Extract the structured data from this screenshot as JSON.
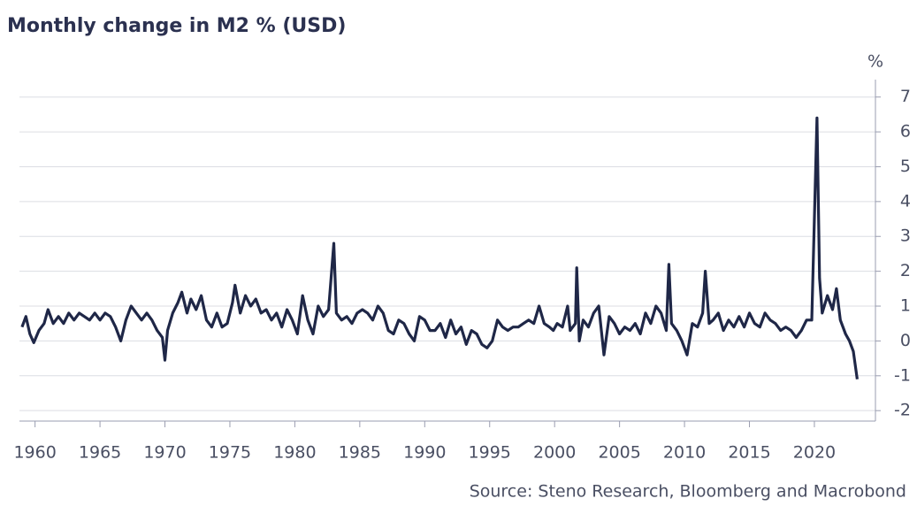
{
  "chart_data": {
    "type": "line",
    "title": "Monthly change in M2 % (USD)",
    "y_label": "%",
    "source": "Source: Steno Research, Bloomberg and Macrobond",
    "xlim": [
      1958.8,
      2024.7
    ],
    "xticks": [
      1960,
      1965,
      1970,
      1975,
      1980,
      1985,
      1990,
      1995,
      2000,
      2005,
      2010,
      2015,
      2020
    ],
    "ylim": [
      -2.3,
      7.5
    ],
    "yticks": [
      7,
      6,
      5,
      4,
      3,
      2,
      1,
      0,
      -1,
      -2
    ],
    "grid": true,
    "series": [
      {
        "name": "M2 monthly change",
        "color": "#1f2747",
        "x": [
          1959.0,
          1959.3,
          1959.6,
          1959.9,
          1960.3,
          1960.7,
          1961.0,
          1961.4,
          1961.8,
          1962.2,
          1962.6,
          1963.0,
          1963.4,
          1963.8,
          1964.2,
          1964.6,
          1965.0,
          1965.4,
          1965.8,
          1966.2,
          1966.6,
          1967.0,
          1967.4,
          1967.8,
          1968.2,
          1968.6,
          1969.0,
          1969.4,
          1969.8,
          1970.0,
          1970.2,
          1970.6,
          1971.0,
          1971.3,
          1971.7,
          1972.0,
          1972.4,
          1972.8,
          1973.2,
          1973.6,
          1974.0,
          1974.4,
          1974.8,
          1975.2,
          1975.4,
          1975.8,
          1976.2,
          1976.6,
          1977.0,
          1977.4,
          1977.8,
          1978.2,
          1978.6,
          1979.0,
          1979.4,
          1979.8,
          1980.2,
          1980.6,
          1981.0,
          1981.4,
          1981.8,
          1982.2,
          1982.6,
          1983.0,
          1983.2,
          1983.6,
          1984.0,
          1984.4,
          1984.8,
          1985.2,
          1985.6,
          1986.0,
          1986.4,
          1986.8,
          1987.2,
          1987.6,
          1988.0,
          1988.4,
          1988.8,
          1989.2,
          1989.6,
          1990.0,
          1990.4,
          1990.8,
          1991.2,
          1991.6,
          1992.0,
          1992.4,
          1992.8,
          1993.2,
          1993.6,
          1994.0,
          1994.4,
          1994.8,
          1995.2,
          1995.6,
          1996.0,
          1996.4,
          1996.8,
          1997.2,
          1997.6,
          1998.0,
          1998.4,
          1998.8,
          1999.2,
          1999.6,
          1999.9,
          2000.2,
          2000.6,
          2001.0,
          2001.2,
          2001.6,
          2001.7,
          2001.9,
          2002.2,
          2002.6,
          2003.0,
          2003.4,
          2003.8,
          2004.2,
          2004.6,
          2005.0,
          2005.4,
          2005.8,
          2006.2,
          2006.6,
          2007.0,
          2007.4,
          2007.8,
          2008.2,
          2008.6,
          2008.8,
          2009.0,
          2009.4,
          2009.8,
          2010.2,
          2010.6,
          2011.0,
          2011.4,
          2011.6,
          2011.9,
          2012.2,
          2012.6,
          2013.0,
          2013.4,
          2013.8,
          2014.2,
          2014.6,
          2015.0,
          2015.4,
          2015.8,
          2016.2,
          2016.6,
          2017.0,
          2017.4,
          2017.8,
          2018.2,
          2018.6,
          2019.0,
          2019.4,
          2019.8,
          2020.2,
          2020.4,
          2020.6,
          2021.0,
          2021.4,
          2021.7,
          2022.0,
          2022.4,
          2022.7,
          2023.0,
          2023.3
        ],
        "values": [
          0.4,
          0.7,
          0.2,
          -0.05,
          0.3,
          0.5,
          0.9,
          0.5,
          0.7,
          0.5,
          0.8,
          0.6,
          0.8,
          0.7,
          0.6,
          0.8,
          0.6,
          0.8,
          0.7,
          0.4,
          0.0,
          0.6,
          1.0,
          0.8,
          0.6,
          0.8,
          0.6,
          0.3,
          0.1,
          -0.55,
          0.3,
          0.8,
          1.1,
          1.4,
          0.8,
          1.2,
          0.9,
          1.3,
          0.6,
          0.4,
          0.8,
          0.4,
          0.5,
          1.1,
          1.6,
          0.8,
          1.3,
          1.0,
          1.2,
          0.8,
          0.9,
          0.6,
          0.8,
          0.4,
          0.9,
          0.6,
          0.2,
          1.3,
          0.6,
          0.2,
          1.0,
          0.7,
          0.9,
          2.8,
          0.8,
          0.6,
          0.7,
          0.5,
          0.8,
          0.9,
          0.8,
          0.6,
          1.0,
          0.8,
          0.3,
          0.2,
          0.6,
          0.5,
          0.2,
          0.0,
          0.7,
          0.6,
          0.3,
          0.3,
          0.5,
          0.1,
          0.6,
          0.2,
          0.4,
          -0.1,
          0.3,
          0.2,
          -0.1,
          -0.2,
          0.0,
          0.6,
          0.4,
          0.3,
          0.4,
          0.4,
          0.5,
          0.6,
          0.5,
          1.0,
          0.5,
          0.4,
          0.3,
          0.5,
          0.4,
          1.0,
          0.3,
          0.5,
          2.1,
          0.0,
          0.6,
          0.4,
          0.8,
          1.0,
          -0.4,
          0.7,
          0.5,
          0.2,
          0.4,
          0.3,
          0.5,
          0.2,
          0.8,
          0.5,
          1.0,
          0.8,
          0.3,
          2.2,
          0.5,
          0.3,
          0.0,
          -0.4,
          0.5,
          0.4,
          0.8,
          2.0,
          0.5,
          0.6,
          0.8,
          0.3,
          0.6,
          0.4,
          0.7,
          0.4,
          0.8,
          0.5,
          0.4,
          0.8,
          0.6,
          0.5,
          0.3,
          0.4,
          0.3,
          0.1,
          0.3,
          0.6,
          0.6,
          6.4,
          1.8,
          0.8,
          1.3,
          0.9,
          1.5,
          0.6,
          0.2,
          0.0,
          -0.3,
          -1.1
        ]
      }
    ]
  }
}
